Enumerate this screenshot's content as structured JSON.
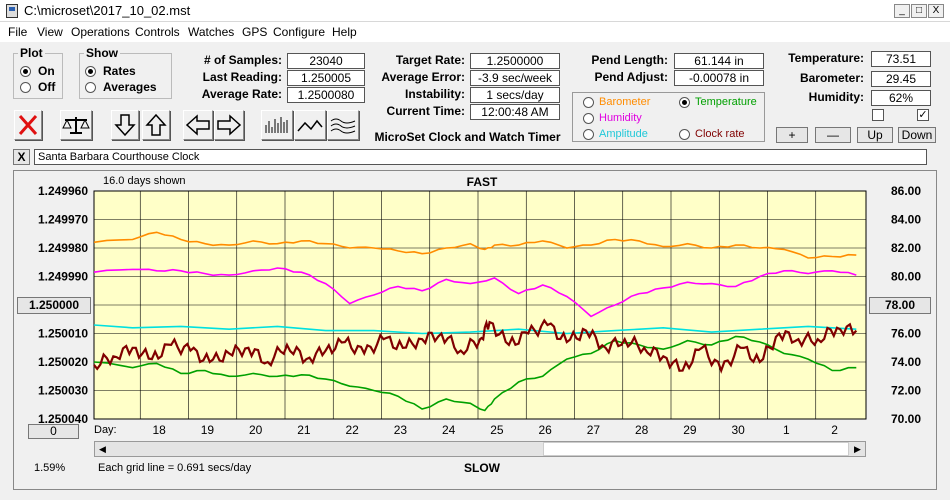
{
  "window": {
    "title": "C:\\microset\\2017_10_02.mst",
    "minimize": "_",
    "maximize": "□",
    "close": "X"
  },
  "menu": [
    "File",
    "View",
    "Operations",
    "Controls",
    "Watches",
    "GPS",
    "Configure",
    "Help"
  ],
  "plot_group": {
    "title": "Plot",
    "on": "On",
    "off": "Off",
    "selected": "On"
  },
  "show_group": {
    "title": "Show",
    "rates": "Rates",
    "averages": "Averages",
    "selected": "Rates"
  },
  "stats": {
    "samples_label": "# of Samples:",
    "samples": "23040",
    "last_label": "Last Reading:",
    "last": "1.250005",
    "avgrate_label": "Average Rate:",
    "avgrate": "1.2500080",
    "target_label": "Target Rate:",
    "target": "1.2500000",
    "averr_label": "Average Error:",
    "averr": "-3.9 sec/week",
    "instab_label": "Instability:",
    "instab": "1 secs/day",
    "time_label": "Current Time:",
    "time": "12:00:48 AM",
    "pendlen_label": "Pend Length:",
    "pendlen": "61.144 in",
    "pendadj_label": "Pend Adjust:",
    "pendadj": "-0.00078 in",
    "temp_label": "Temperature:",
    "temp": "73.51",
    "baro_label": "Barometer:",
    "baro": "29.45",
    "hum_label": "Humidity:",
    "hum": "62%"
  },
  "app_name": "MicroSet Clock and Watch Timer",
  "sensor_select": {
    "barometer": "Barometer",
    "temperature": "Temperature",
    "humidity": "Humidity",
    "amplitude": "Amplitude",
    "clockrate": "Clock rate",
    "selected": "Temperature"
  },
  "adjust_buttons": {
    "plus": "+",
    "minus": "—",
    "up": "Up",
    "down": "Down"
  },
  "colors": {
    "barometer": "#ff8c00",
    "temperature": "#00a000",
    "humidity": "#ff00ff",
    "amplitude": "#00e0e0",
    "clockrate": "#800000",
    "plot_bg": "#ffffc8"
  },
  "toolbar_icons": [
    "close-x-icon",
    "balance-scale-icon",
    "arrow-down-icon",
    "arrow-up-icon",
    "arrow-left-icon",
    "arrow-right-icon",
    "bar-graph-icon",
    "line-graph-icon",
    "wave-graph-icon"
  ],
  "watch_name": "Santa Barbara Courthouse Clock",
  "watch_close": "X",
  "plot": {
    "days_shown": "16.0 days shown",
    "fast": "FAST",
    "slow": "SLOW",
    "center_value": "1.250000",
    "right_center": "78.00",
    "left_bottom_btn": "0",
    "percent": "1.59%",
    "grid_note": "Each grid line = 0.691 secs/day",
    "day_label": "Day:"
  },
  "chart_data": {
    "type": "line",
    "left_axis_ticks": [
      "1.249960",
      "1.249970",
      "1.249980",
      "1.249990",
      "1.250000",
      "1.250010",
      "1.250020",
      "1.250030",
      "1.250040"
    ],
    "right_axis_ticks": [
      "86.00",
      "84.00",
      "82.00",
      "80.00",
      "78.00",
      "76.00",
      "74.00",
      "72.00",
      "70.00"
    ],
    "x_ticks": [
      "18",
      "19",
      "20",
      "21",
      "22",
      "23",
      "24",
      "25",
      "26",
      "27",
      "28",
      "29",
      "30",
      "1",
      "2"
    ],
    "x_day_range": [
      16.2,
      32.2
    ],
    "right_ylim": [
      70,
      86
    ],
    "series": [
      {
        "name": "Barometer",
        "color": "#ff8c00",
        "x": [
          16.2,
          17,
          17.5,
          18,
          18.5,
          19,
          19.5,
          20,
          20.5,
          21,
          21.5,
          22,
          22.5,
          23,
          23.5,
          24,
          24.3,
          24.5,
          25,
          25.5,
          26,
          26.5,
          27,
          27.5,
          28,
          28.5,
          29,
          29.5,
          30,
          30.5,
          31,
          31.5,
          32
        ],
        "y": [
          82.4,
          82.6,
          83.1,
          82.6,
          82.3,
          82.2,
          82.5,
          82.3,
          82.5,
          82.3,
          82.0,
          82.0,
          81.8,
          81.6,
          82.0,
          82.3,
          81.9,
          82.2,
          82.2,
          82.5,
          82.0,
          82.2,
          82.6,
          82.5,
          82.1,
          82.3,
          82.0,
          82.2,
          82.0,
          81.9,
          81.3,
          81.4,
          81.5
        ]
      },
      {
        "name": "Humidity",
        "color": "#ff00ff",
        "x": [
          16.2,
          17,
          17.5,
          18,
          18.5,
          19,
          19.5,
          20,
          20.5,
          21,
          21.5,
          22,
          22.5,
          23,
          23.5,
          24,
          24.5,
          25,
          25.5,
          26,
          26.5,
          27,
          27.5,
          28,
          28.5,
          29,
          29.5,
          30,
          30.5,
          31,
          31.5,
          32
        ],
        "y": [
          80.3,
          80.5,
          80.4,
          80.4,
          80.2,
          80.1,
          80.4,
          80.6,
          80.3,
          79.5,
          78.1,
          78.7,
          79.3,
          79.0,
          79.8,
          79.5,
          79.9,
          78.8,
          79.4,
          78.6,
          77.2,
          78.0,
          78.8,
          79.2,
          79.6,
          79.5,
          79.3,
          80.0,
          80.4,
          80.2,
          80.4,
          80.1
        ]
      },
      {
        "name": "Amplitude",
        "color": "#00e0e0",
        "x": [
          16.2,
          17,
          18,
          19,
          20,
          21,
          22,
          23,
          24,
          25,
          26,
          27,
          28,
          29,
          30,
          31,
          32
        ],
        "y": [
          76.6,
          76.4,
          76.5,
          76.3,
          76.5,
          76.2,
          76.2,
          76.0,
          76.1,
          76.3,
          76.0,
          76.2,
          76.4,
          76.1,
          76.3,
          76.5,
          76.3
        ]
      },
      {
        "name": "Temperature",
        "color": "#00a000",
        "x": [
          16.2,
          17,
          17.5,
          18,
          18.5,
          19,
          19.5,
          20,
          20.5,
          21,
          21.5,
          22,
          22.5,
          23,
          23.5,
          24,
          24.3,
          24.5,
          25,
          25.5,
          26,
          26.5,
          27,
          27.5,
          28,
          28.5,
          29,
          29.5,
          30,
          30.5,
          31,
          31.5,
          32
        ],
        "y": [
          74.0,
          73.6,
          73.9,
          73.2,
          73.4,
          73.0,
          73.2,
          73.0,
          73.1,
          72.8,
          72.3,
          72.0,
          71.6,
          70.7,
          71.4,
          71.1,
          70.6,
          71.4,
          72.6,
          73.0,
          74.2,
          74.6,
          75.5,
          75.2,
          74.9,
          75.5,
          75.2,
          75.8,
          75.4,
          74.6,
          74.2,
          73.4,
          73.6
        ]
      },
      {
        "name": "Clock rate",
        "color": "#800000",
        "x": [
          16.2,
          16.6,
          17,
          17.4,
          17.8,
          18.2,
          18.6,
          19,
          19.4,
          19.8,
          20.2,
          20.6,
          21,
          21.4,
          21.8,
          22.2,
          22.6,
          23,
          23.4,
          23.8,
          24.2,
          24.4,
          24.8,
          25.2,
          25.6,
          26,
          26.4,
          26.8,
          27.2,
          27.6,
          28,
          28.4,
          28.8,
          29.2,
          29.6,
          30,
          30.4,
          30.8,
          31.2,
          31.6,
          32
        ],
        "y": [
          1.250021,
          1.250018,
          1.250015,
          1.250019,
          1.250014,
          1.250016,
          1.25002,
          1.250017,
          1.250015,
          1.25002,
          1.250014,
          1.250019,
          1.250016,
          1.250013,
          1.250017,
          1.250012,
          1.250015,
          1.250012,
          1.25001,
          1.250016,
          1.250012,
          1.250006,
          1.250014,
          1.25001,
          1.250007,
          1.250013,
          1.250009,
          1.250015,
          1.250012,
          1.250015,
          1.250018,
          1.250023,
          1.250015,
          1.250023,
          1.250015,
          1.25002,
          1.25001,
          1.250012,
          1.250012,
          1.250008,
          1.250009
        ]
      }
    ]
  }
}
